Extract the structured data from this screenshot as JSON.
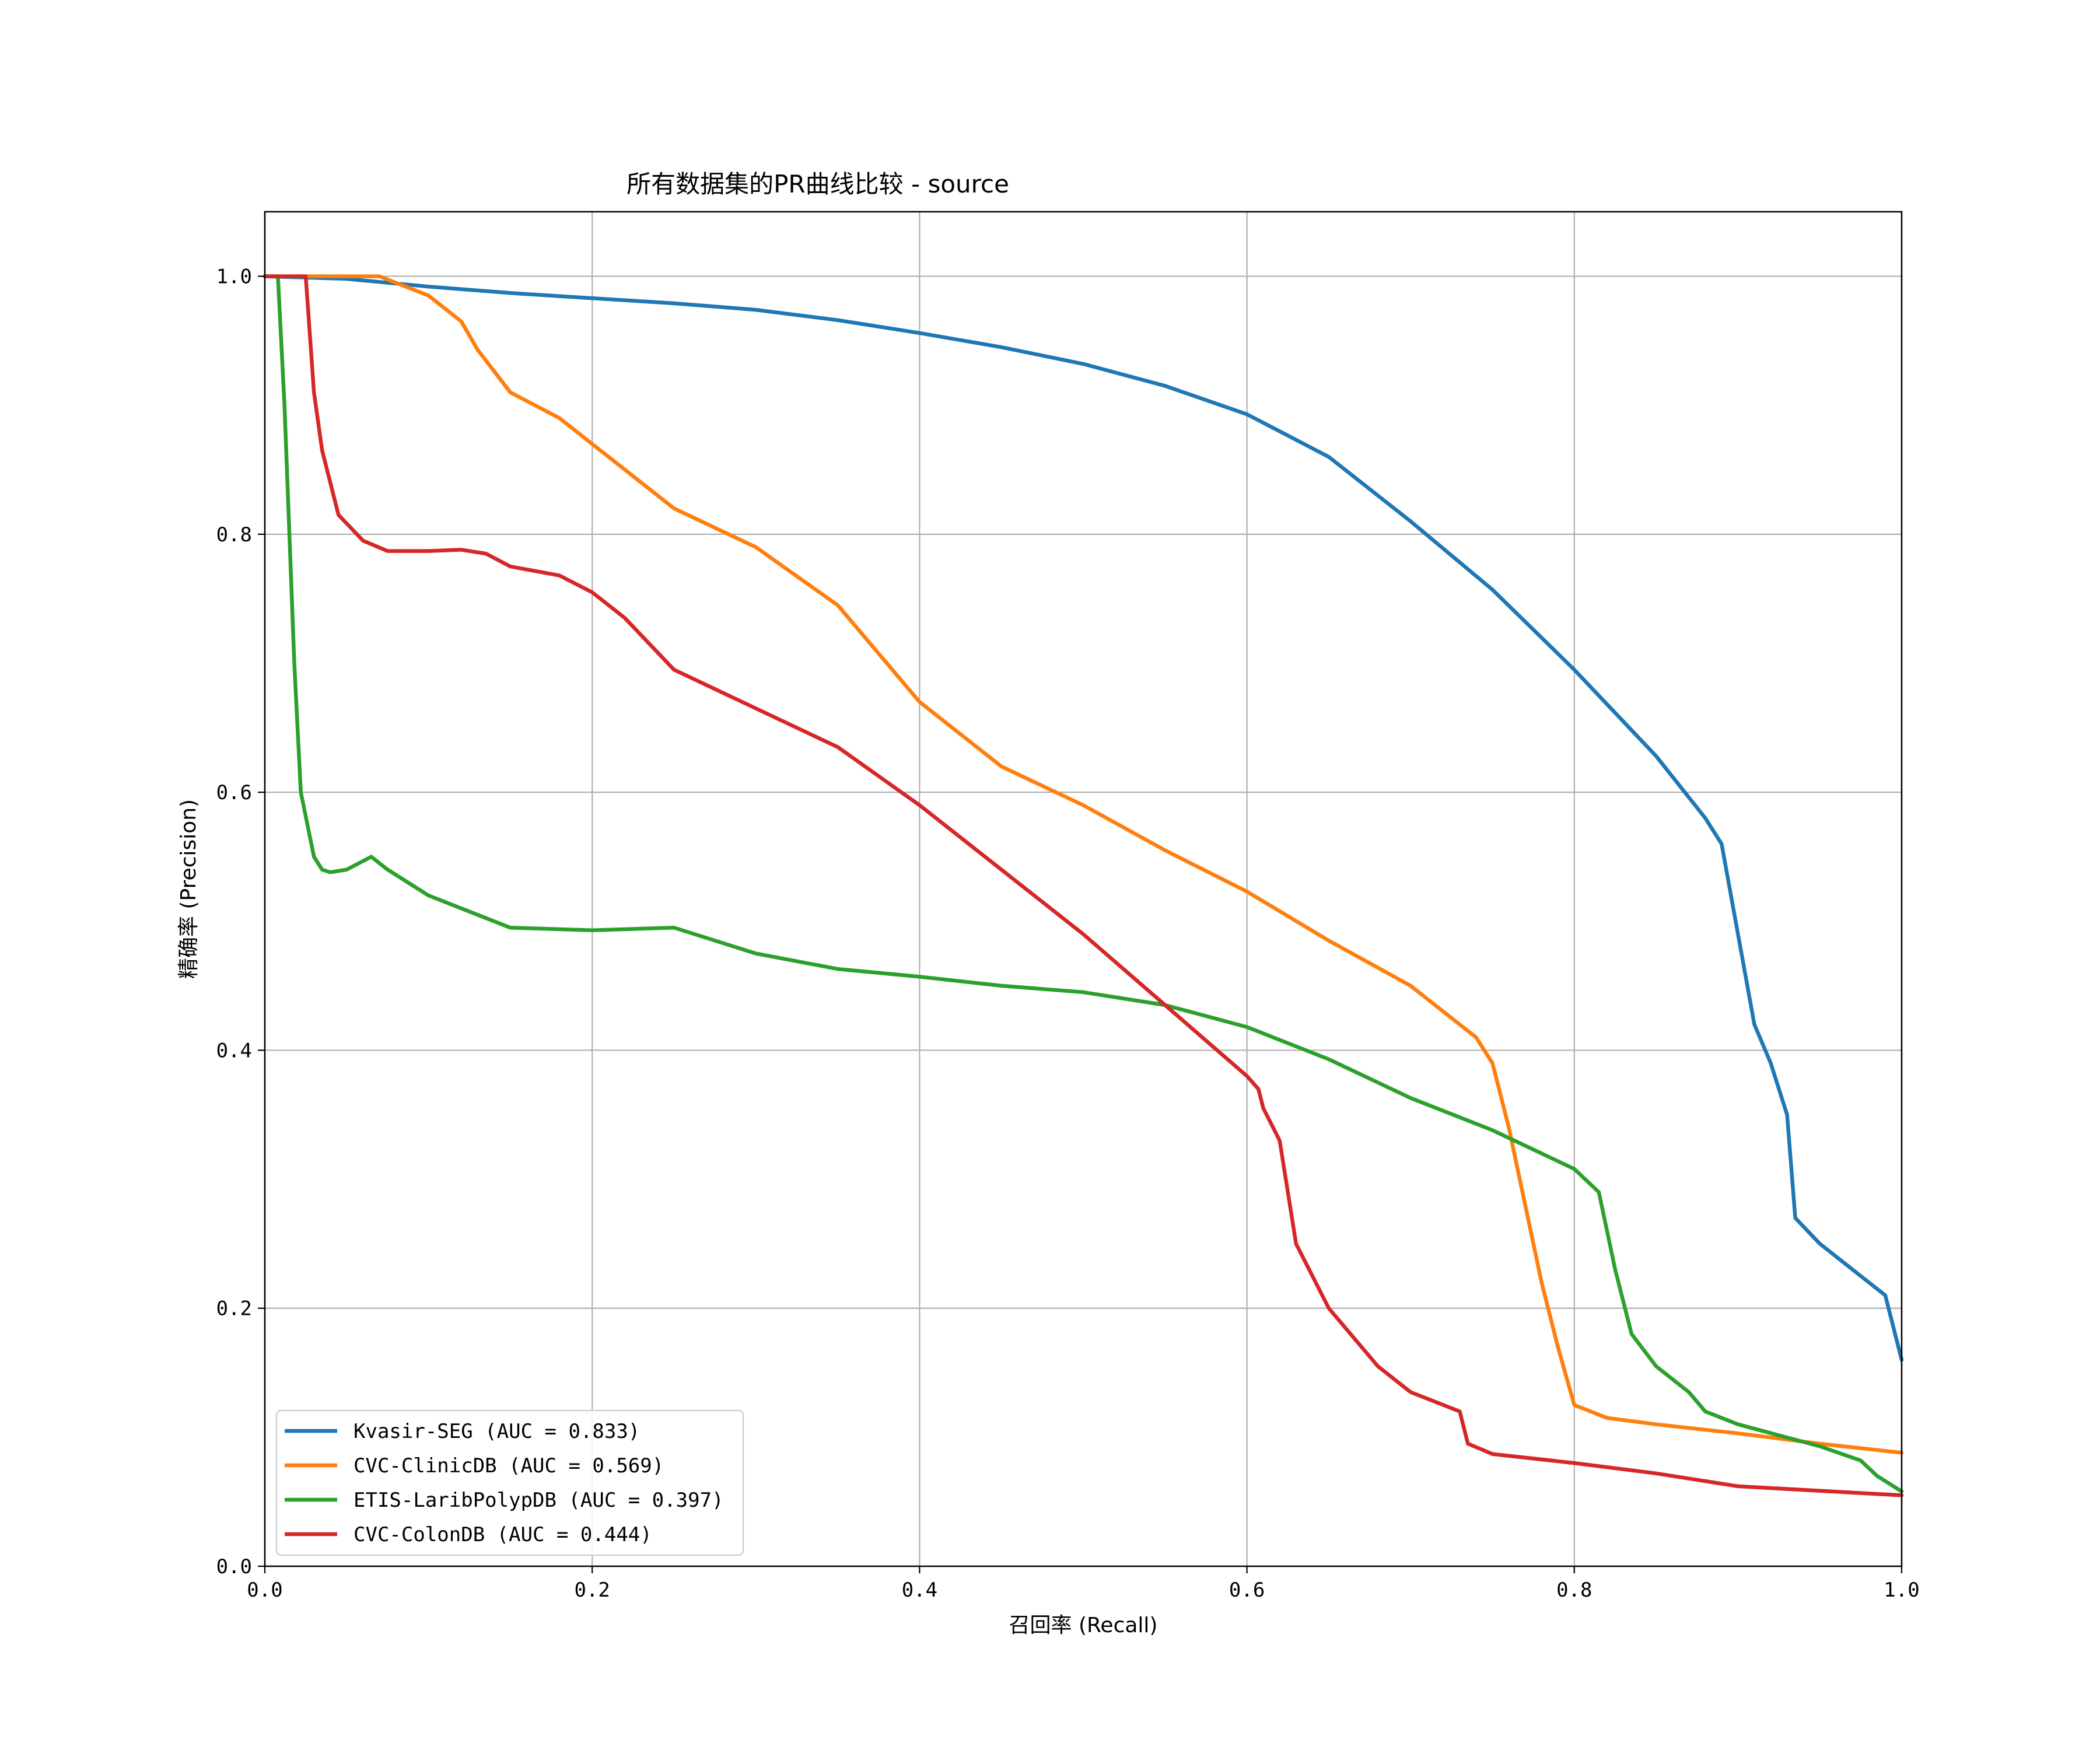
{
  "chart_data": {
    "type": "line",
    "title": "所有数据集的PR曲线比较 - source",
    "xlabel": "召回率 (Recall)",
    "ylabel": "精确率 (Precision)",
    "xlim": [
      0,
      1
    ],
    "ylim": [
      0,
      1.05
    ],
    "xticks": [
      0,
      0.2,
      0.4,
      0.6,
      0.8,
      1.0
    ],
    "yticks": [
      0,
      0.2,
      0.4,
      0.6,
      0.8,
      1.0
    ],
    "xtick_labels": [
      "0.0",
      "0.2",
      "0.4",
      "0.6",
      "0.8",
      "1.0"
    ],
    "ytick_labels": [
      "0.0",
      "0.2",
      "0.4",
      "0.6",
      "0.8",
      "1.0"
    ],
    "grid": true,
    "legend_position": "lower-left",
    "series": [
      {
        "name": "Kvasir-SEG (AUC = 0.833)",
        "color": "#1f77b4",
        "x": [
          0,
          0.05,
          0.1,
          0.15,
          0.2,
          0.25,
          0.3,
          0.35,
          0.4,
          0.45,
          0.5,
          0.55,
          0.6,
          0.65,
          0.7,
          0.75,
          0.8,
          0.85,
          0.88,
          0.89,
          0.9,
          0.91,
          0.92,
          0.93,
          0.935,
          0.95,
          0.97,
          0.99,
          1.0
        ],
        "y": [
          1.0,
          0.998,
          0.992,
          0.987,
          0.983,
          0.979,
          0.974,
          0.966,
          0.956,
          0.945,
          0.932,
          0.915,
          0.893,
          0.86,
          0.81,
          0.757,
          0.695,
          0.628,
          0.58,
          0.56,
          0.49,
          0.42,
          0.39,
          0.35,
          0.27,
          0.25,
          0.23,
          0.21,
          0.16
        ]
      },
      {
        "name": "CVC-ClinicDB (AUC = 0.569)",
        "color": "#ff7f0e",
        "x": [
          0,
          0.03,
          0.07,
          0.1,
          0.12,
          0.13,
          0.15,
          0.18,
          0.2,
          0.25,
          0.3,
          0.35,
          0.4,
          0.45,
          0.5,
          0.55,
          0.6,
          0.65,
          0.7,
          0.74,
          0.75,
          0.76,
          0.78,
          0.79,
          0.8,
          0.82,
          0.85,
          0.9,
          0.95,
          1.0
        ],
        "y": [
          1.0,
          1.0,
          1.0,
          0.985,
          0.965,
          0.943,
          0.91,
          0.89,
          0.87,
          0.82,
          0.79,
          0.745,
          0.67,
          0.62,
          0.59,
          0.555,
          0.523,
          0.485,
          0.45,
          0.41,
          0.39,
          0.34,
          0.22,
          0.17,
          0.125,
          0.115,
          0.11,
          0.103,
          0.095,
          0.088
        ]
      },
      {
        "name": "ETIS-LaribPolypDB (AUC = 0.397)",
        "color": "#2ca02c",
        "x": [
          0,
          0.008,
          0.012,
          0.018,
          0.022,
          0.03,
          0.035,
          0.04,
          0.05,
          0.065,
          0.075,
          0.1,
          0.12,
          0.15,
          0.2,
          0.25,
          0.3,
          0.35,
          0.4,
          0.45,
          0.5,
          0.55,
          0.6,
          0.65,
          0.7,
          0.75,
          0.8,
          0.815,
          0.825,
          0.835,
          0.85,
          0.87,
          0.88,
          0.9,
          0.95,
          0.975,
          0.985,
          1.0
        ],
        "y": [
          1.0,
          1.0,
          0.9,
          0.7,
          0.6,
          0.55,
          0.54,
          0.538,
          0.54,
          0.55,
          0.54,
          0.52,
          0.51,
          0.495,
          0.493,
          0.495,
          0.475,
          0.463,
          0.457,
          0.45,
          0.445,
          0.435,
          0.418,
          0.393,
          0.363,
          0.338,
          0.308,
          0.29,
          0.23,
          0.18,
          0.155,
          0.135,
          0.12,
          0.11,
          0.093,
          0.082,
          0.07,
          0.058
        ]
      },
      {
        "name": "CVC-ColonDB (AUC = 0.444)",
        "color": "#d62728",
        "x": [
          0,
          0.025,
          0.03,
          0.035,
          0.045,
          0.06,
          0.075,
          0.09,
          0.1,
          0.12,
          0.135,
          0.15,
          0.18,
          0.2,
          0.22,
          0.25,
          0.3,
          0.35,
          0.4,
          0.45,
          0.5,
          0.55,
          0.6,
          0.607,
          0.61,
          0.62,
          0.63,
          0.65,
          0.68,
          0.7,
          0.73,
          0.735,
          0.75,
          0.8,
          0.85,
          0.9,
          1.0
        ],
        "y": [
          1.0,
          1.0,
          0.91,
          0.865,
          0.815,
          0.795,
          0.787,
          0.787,
          0.787,
          0.788,
          0.785,
          0.775,
          0.768,
          0.755,
          0.735,
          0.695,
          0.665,
          0.635,
          0.59,
          0.54,
          0.49,
          0.435,
          0.38,
          0.37,
          0.355,
          0.33,
          0.25,
          0.2,
          0.155,
          0.135,
          0.12,
          0.095,
          0.087,
          0.08,
          0.072,
          0.062,
          0.055
        ]
      }
    ]
  }
}
